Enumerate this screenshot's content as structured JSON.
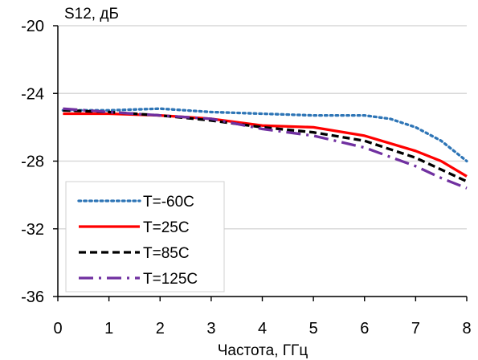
{
  "chart_data": {
    "type": "line",
    "title": "",
    "xlabel": "Частота, ГГц",
    "ylabel": "S12, дБ",
    "xlim": [
      0,
      8
    ],
    "ylim": [
      -36,
      -20
    ],
    "x_ticks": [
      0,
      1,
      2,
      3,
      4,
      5,
      6,
      7,
      8
    ],
    "x_tick_labels": [
      "0",
      "1",
      "2",
      "3",
      "4",
      "5",
      "6",
      "7",
      "8"
    ],
    "y_ticks": [
      -20,
      -24,
      -28,
      -32,
      -36
    ],
    "y_tick_labels": [
      "-20",
      "-24",
      "-28",
      "-32",
      "-36"
    ],
    "grid": {
      "horizontal": true,
      "vertical": false
    },
    "legend": {
      "placement": "bottom-left",
      "show": true
    },
    "series": [
      {
        "name": "T=-60C",
        "color": "#2e75b6",
        "style": "dotted",
        "x": [
          0.1,
          1.0,
          2.0,
          3.0,
          4.0,
          5.0,
          6.0,
          6.5,
          7.0,
          7.5,
          8.0
        ],
        "y": [
          -25.0,
          -25.0,
          -24.9,
          -25.1,
          -25.2,
          -25.3,
          -25.3,
          -25.5,
          -26.0,
          -26.8,
          -28.0
        ]
      },
      {
        "name": "T=25C",
        "color": "#ff0000",
        "style": "solid",
        "x": [
          0.1,
          1.0,
          2.0,
          3.0,
          4.0,
          5.0,
          6.0,
          7.0,
          7.5,
          8.0
        ],
        "y": [
          -25.2,
          -25.2,
          -25.3,
          -25.5,
          -25.9,
          -26.0,
          -26.5,
          -27.4,
          -28.0,
          -28.9
        ]
      },
      {
        "name": "T=85C",
        "color": "#000000",
        "style": "dashed",
        "x": [
          0.1,
          1.0,
          2.0,
          3.0,
          4.0,
          5.0,
          6.0,
          7.0,
          7.5,
          8.0
        ],
        "y": [
          -25.0,
          -25.1,
          -25.3,
          -25.6,
          -26.0,
          -26.3,
          -26.8,
          -27.8,
          -28.5,
          -29.2
        ]
      },
      {
        "name": "T=125C",
        "color": "#7030a0",
        "style": "dashdot",
        "x": [
          0.1,
          1.0,
          2.0,
          3.0,
          4.0,
          5.0,
          6.0,
          7.0,
          7.5,
          8.0
        ],
        "y": [
          -24.9,
          -25.1,
          -25.3,
          -25.5,
          -26.1,
          -26.5,
          -27.2,
          -28.3,
          -29.0,
          -29.6
        ]
      }
    ]
  }
}
